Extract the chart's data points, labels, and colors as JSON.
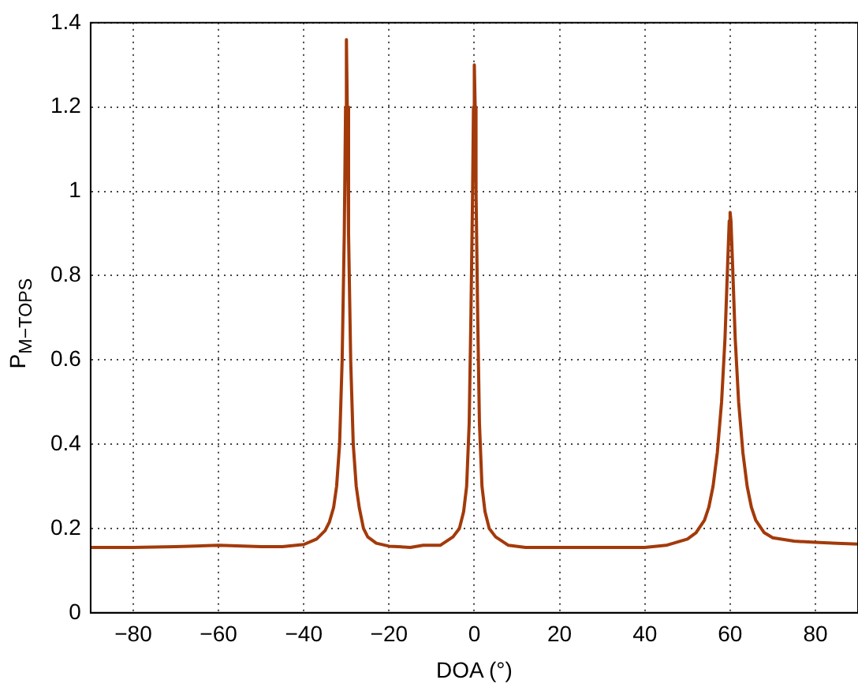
{
  "chart_data": {
    "type": "line",
    "xlabel": "DOA (°)",
    "ylabel": "P$_{M−TOPS}$",
    "xlim": [
      -90,
      90
    ],
    "ylim": [
      0,
      1.4
    ],
    "xticks": [
      -80,
      -60,
      -40,
      -20,
      0,
      20,
      40,
      60,
      80
    ],
    "yticks": [
      0,
      0.2,
      0.4,
      0.6,
      0.8,
      1,
      1.2,
      1.4
    ],
    "grid": true,
    "legend": false,
    "marker": "none",
    "line_style": "solid",
    "series": [
      {
        "color": "#a33a0a",
        "x": [
          -90,
          -80,
          -70,
          -60,
          -50,
          -45,
          -40,
          -37,
          -35,
          -34,
          -33,
          -32.3,
          -31.6,
          -31,
          -30.5,
          -30.2,
          -30,
          -29.8,
          -29.5,
          -29,
          -28.4,
          -27.7,
          -27,
          -26,
          -25,
          -23,
          -20,
          -15,
          -12,
          -8,
          -5,
          -3.5,
          -2.5,
          -1.8,
          -1.2,
          -0.8,
          -0.4,
          -0.2,
          0,
          0.2,
          0.4,
          0.8,
          1.2,
          1.8,
          2.5,
          3.5,
          5,
          8,
          12,
          20,
          30,
          40,
          45,
          50,
          52,
          54,
          55,
          56,
          57,
          58,
          58.8,
          59.4,
          59.8,
          60,
          60.2,
          60.6,
          61.2,
          62,
          63,
          64,
          65,
          66,
          68,
          70,
          75,
          80,
          85,
          90
        ],
        "values": [
          0.155,
          0.155,
          0.157,
          0.16,
          0.157,
          0.157,
          0.162,
          0.175,
          0.195,
          0.215,
          0.25,
          0.3,
          0.4,
          0.6,
          0.9,
          1.2,
          1.36,
          1.2,
          0.9,
          0.6,
          0.4,
          0.3,
          0.25,
          0.2,
          0.18,
          0.165,
          0.158,
          0.155,
          0.16,
          0.16,
          0.18,
          0.2,
          0.24,
          0.3,
          0.45,
          0.7,
          1.0,
          1.2,
          1.3,
          1.2,
          1.0,
          0.7,
          0.45,
          0.3,
          0.24,
          0.2,
          0.18,
          0.16,
          0.155,
          0.155,
          0.155,
          0.155,
          0.16,
          0.175,
          0.19,
          0.22,
          0.25,
          0.3,
          0.38,
          0.5,
          0.65,
          0.82,
          0.93,
          0.95,
          0.93,
          0.82,
          0.65,
          0.5,
          0.38,
          0.3,
          0.25,
          0.22,
          0.19,
          0.178,
          0.17,
          0.167,
          0.165,
          0.163
        ]
      }
    ]
  }
}
